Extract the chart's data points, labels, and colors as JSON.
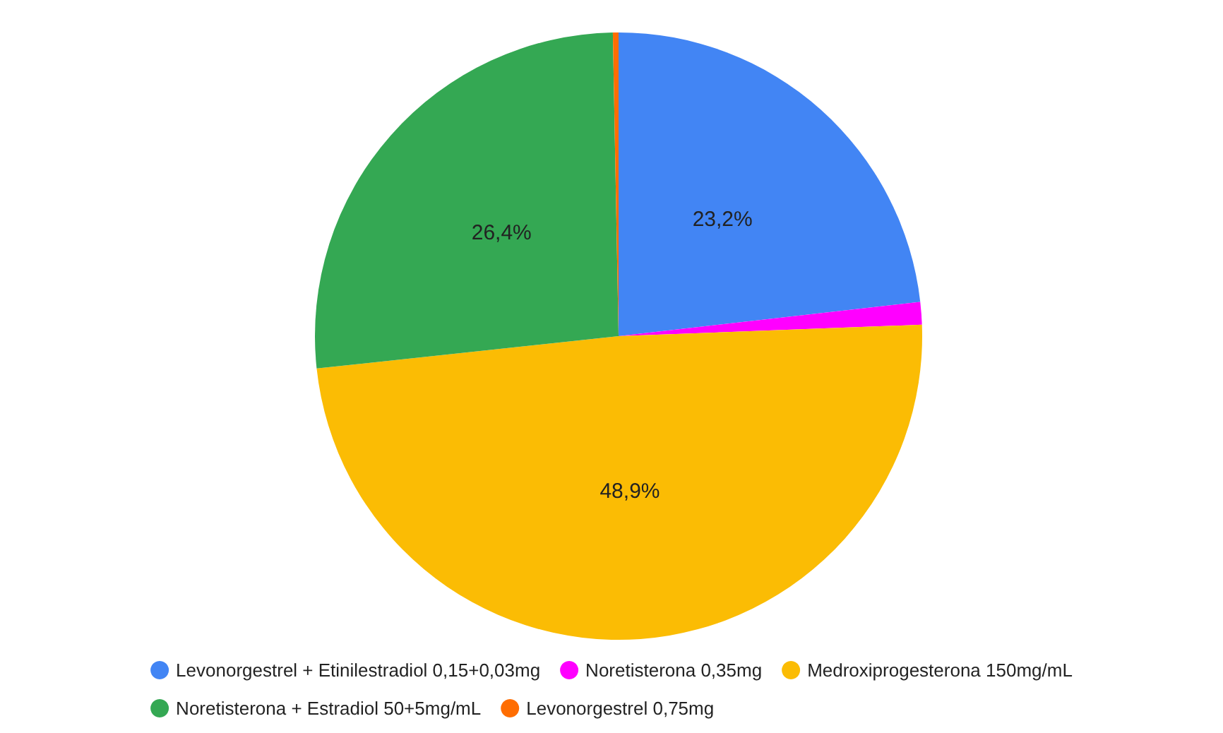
{
  "chart_data": {
    "type": "pie",
    "categories": [
      "Levonorgestrel + Etinilestradiol 0,15+0,03mg",
      "Noretisterona 0,35mg",
      "Medroxiprogesterona 150mg/mL",
      "Noretisterona + Estradiol 50+5mg/mL",
      "Levonorgestrel 0,75mg"
    ],
    "values": [
      23.2,
      1.2,
      48.9,
      26.4,
      0.3
    ],
    "colors": [
      "#4285f4",
      "#ff00ff",
      "#fbbc04",
      "#34a853",
      "#ff6d01"
    ],
    "value_labels": [
      "23,2%",
      null,
      "48,9%",
      "26,4%",
      null
    ],
    "legend": "bottom"
  }
}
